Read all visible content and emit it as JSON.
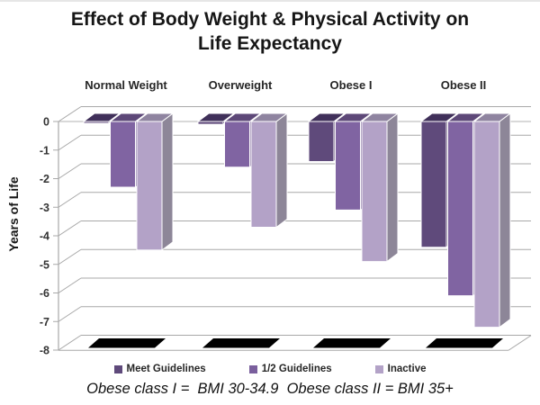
{
  "title": {
    "line1": "Effect of Body Weight & Physical Activity on",
    "line2": "Life Expectancy"
  },
  "y_axis": {
    "title": "Years of Life",
    "tick_labels": [
      "0",
      "-1",
      "-2",
      "-3",
      "-4",
      "-5",
      "-6",
      "-7",
      "-8"
    ]
  },
  "legend": {
    "items": [
      {
        "label": "Meet Guidelines",
        "color": "#5f4a7b"
      },
      {
        "label": "1/2 Guidelines",
        "color": "#7a5f9d"
      },
      {
        "label": "Inactive",
        "color": "#b3a2c7"
      }
    ]
  },
  "footnote": {
    "text": "Obese class I =  BMI 30-34.9  Obese class II = BMI 35+"
  },
  "chart_data": {
    "type": "bar",
    "style": "3d-column",
    "title": "Effect of Body Weight & Physical Activity on Life Expectancy",
    "categories": [
      "Normal Weight",
      "Overweight",
      "Obese I",
      "Obese II"
    ],
    "series": [
      {
        "name": "Meet Guidelines",
        "values": [
          0,
          -0.1,
          -1.4,
          -4.4
        ],
        "color": "#5f4a7b",
        "cap_color": "#40305a",
        "side_color": "#4e3b66"
      },
      {
        "name": "1/2 Guidelines",
        "values": [
          -2.3,
          -1.6,
          -3.1,
          -6.1
        ],
        "color": "#8064a2",
        "cap_color": "#5d4878",
        "side_color": "#6d568e"
      },
      {
        "name": "Inactive",
        "values": [
          -4.5,
          -3.7,
          -4.9,
          -7.2
        ],
        "color": "#b3a2c7",
        "cap_color": "#8f84a0",
        "side_color": "#8d8698"
      }
    ],
    "xlabel": "",
    "ylabel": "Years of Life",
    "ylim": [
      -8,
      0
    ],
    "grid": true,
    "gridline_color": "#a8a8a8",
    "legend_position": "bottom",
    "floor_shadow_color": "#000000"
  }
}
